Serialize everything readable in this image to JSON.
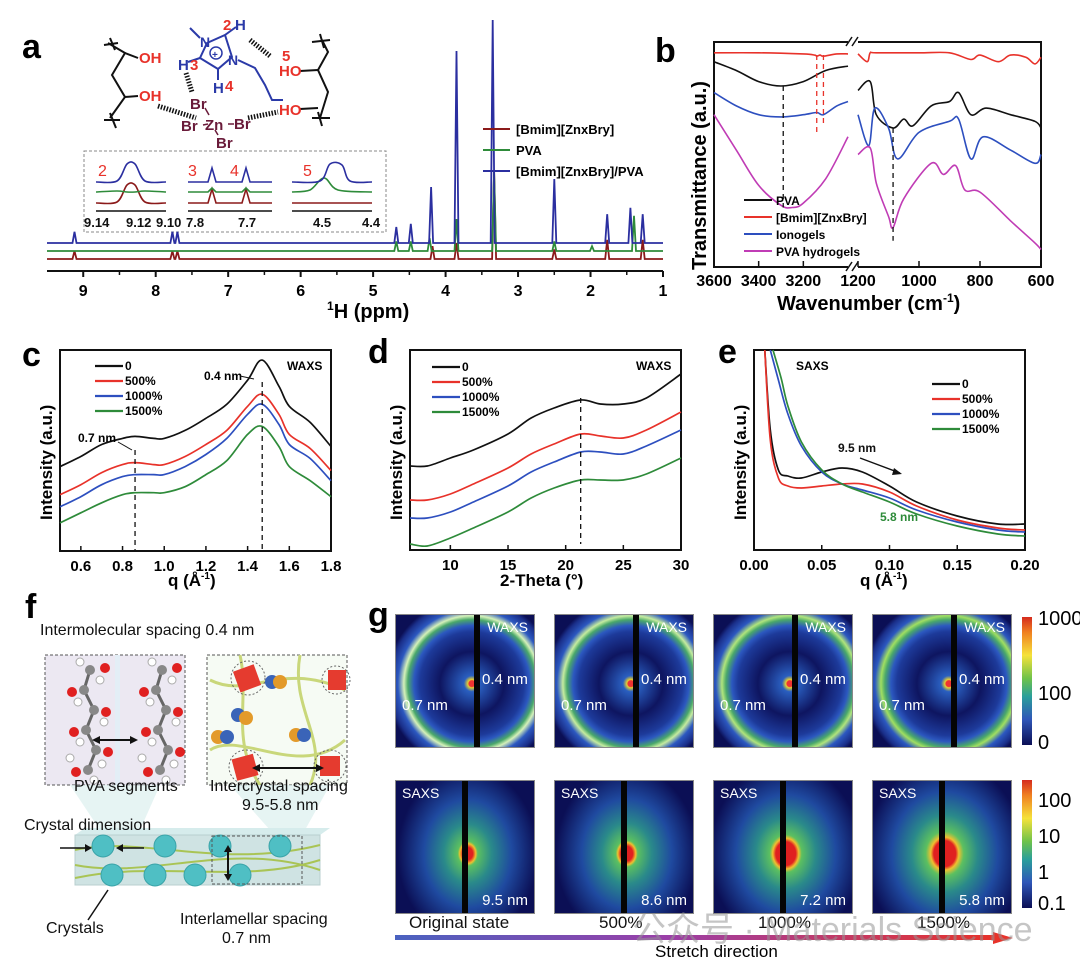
{
  "panels": {
    "a": "a",
    "b": "b",
    "c": "c",
    "d": "d",
    "e": "e",
    "f": "f",
    "g": "g"
  },
  "chart_data": [
    {
      "id": "a",
      "type": "line",
      "title": "",
      "xlabel": "1H (ppm)",
      "xlabel_sup": "1",
      "xlabel_main": "H (ppm)",
      "ylabel": "",
      "xlim": [
        9.5,
        1.0
      ],
      "x_ticks": [
        "9",
        "8",
        "7",
        "6",
        "5",
        "4",
        "3",
        "2",
        "1"
      ],
      "legend": [
        "[Bmim][ZnxBry]",
        "PVA",
        "[Bmim][ZnxBry]/PVA"
      ],
      "legend_placement": "right",
      "colors": {
        "[Bmim][ZnxBry]": "#8b1a1a",
        "PVA": "#2e8b3a",
        "[Bmim][ZnxBry]/PVA": "#2b2fa0"
      },
      "series": [
        {
          "name": "[Bmim][ZnxBry]",
          "peaks": [
            [
              9.12,
              0.05
            ],
            [
              7.77,
              0.05
            ],
            [
              7.7,
              0.05
            ],
            [
              4.18,
              0.08
            ],
            [
              3.85,
              0.1
            ],
            [
              3.33,
              0.55
            ],
            [
              2.5,
              0.06
            ],
            [
              1.77,
              0.12
            ],
            [
              1.28,
              0.12
            ]
          ]
        },
        {
          "name": "PVA",
          "peaks": [
            [
              4.68,
              0.06
            ],
            [
              4.48,
              0.06
            ],
            [
              4.22,
              0.08
            ],
            [
              3.85,
              0.2
            ],
            [
              3.33,
              0.5
            ],
            [
              2.5,
              0.06
            ],
            [
              1.98,
              0.03
            ],
            [
              1.4,
              0.22
            ]
          ]
        },
        {
          "name": "[Bmim][ZnxBry]/PVA",
          "peaks": [
            [
              9.12,
              0.07
            ],
            [
              7.77,
              0.07
            ],
            [
              7.7,
              0.07
            ],
            [
              4.68,
              0.1
            ],
            [
              4.48,
              0.12
            ],
            [
              4.2,
              0.35
            ],
            [
              3.85,
              1.2
            ],
            [
              3.35,
              1.45
            ],
            [
              2.5,
              0.4
            ],
            [
              1.77,
              0.18
            ],
            [
              1.45,
              0.22
            ],
            [
              1.28,
              0.18
            ]
          ]
        }
      ],
      "insets": [
        {
          "label": "2",
          "ticks": [
            "9.14",
            "9.12",
            "9.10"
          ]
        },
        {
          "label": "3",
          "label2": "4",
          "ticks": [
            "7.8",
            "7.7"
          ]
        },
        {
          "label": "5",
          "ticks": [
            "4.5",
            "4.4"
          ]
        }
      ],
      "structure_labels": {
        "oh_left_top": "OH",
        "oh_left_bottom": "OH",
        "ho_right_top": "HO",
        "ho_right_bottom": "HO",
        "n1": "N",
        "n2": "N",
        "h2": "H",
        "h3": "H",
        "h4": "H",
        "num2": "2",
        "num3": "3",
        "num4": "4",
        "num5": "5",
        "zn": "Zn",
        "br1": "Br",
        "br2": "Br",
        "br3": "Br",
        "br4": "Br",
        "plus": "+"
      }
    },
    {
      "id": "b",
      "type": "line",
      "title": "",
      "xlabel": "Wavenumber (cm-1)",
      "xlabel_main": "Wavenumber (cm",
      "xlabel_sup": "-1",
      "xlabel_end": ")",
      "ylabel": "Transmittance (a.u.)",
      "x_ticks": [
        "3600",
        "3400",
        "3200",
        "1200",
        "1000",
        "800",
        "600"
      ],
      "x_break": [
        3000,
        1200
      ],
      "legend": [
        "PVA",
        "[Bmim][ZnxBry]",
        "Ionogels",
        "PVA hydrogels"
      ],
      "legend_placement": "bottom-left",
      "colors": {
        "PVA": "#111111",
        "[Bmim][ZnxBry]": "#e8322a",
        "Ionogels": "#2d4fbf",
        "PVA hydrogels": "#c03cb5"
      },
      "annotations": {
        "dashed_black_1": 3290,
        "dashed_red_1": 3140,
        "dashed_red_2": 3110,
        "dashed_black_2": 1085
      },
      "series": [
        {
          "name": "[Bmim][ZnxBry]",
          "x": [
            3600,
            3400,
            3200,
            3150,
            3140,
            3125,
            3110,
            3050,
            3000,
            1200,
            1170,
            1160,
            1140,
            1000,
            900,
            830,
            800,
            740,
            700,
            650,
            620,
            600
          ],
          "y": [
            0.96,
            0.96,
            0.955,
            0.95,
            0.945,
            0.95,
            0.945,
            0.955,
            0.955,
            0.955,
            0.92,
            0.96,
            0.96,
            0.96,
            0.96,
            0.93,
            0.95,
            0.92,
            0.95,
            0.94,
            0.91,
            0.94
          ]
        },
        {
          "name": "PVA",
          "x": [
            3600,
            3500,
            3400,
            3300,
            3200,
            3100,
            3000,
            1200,
            1160,
            1140,
            1085,
            1050,
            1020,
            960,
            900,
            870,
            830,
            780,
            700,
            620,
            600
          ],
          "y": [
            0.92,
            0.88,
            0.83,
            0.81,
            0.83,
            0.88,
            0.9,
            0.79,
            0.83,
            0.68,
            0.62,
            0.66,
            0.63,
            0.72,
            0.74,
            0.78,
            0.68,
            0.71,
            0.68,
            0.65,
            0.62
          ]
        },
        {
          "name": "Ionogels",
          "x": [
            3600,
            3500,
            3400,
            3300,
            3200,
            3140,
            3110,
            3050,
            3000,
            1200,
            1165,
            1145,
            1100,
            1070,
            1000,
            900,
            870,
            830,
            790,
            700,
            620,
            600
          ],
          "y": [
            0.78,
            0.72,
            0.68,
            0.67,
            0.68,
            0.69,
            0.68,
            0.72,
            0.74,
            0.68,
            0.54,
            0.71,
            0.62,
            0.48,
            0.6,
            0.65,
            0.66,
            0.48,
            0.58,
            0.52,
            0.46,
            0.5
          ]
        },
        {
          "name": "PVA hydrogels",
          "x": [
            3600,
            3500,
            3400,
            3300,
            3250,
            3200,
            3100,
            3000,
            1200,
            1160,
            1140,
            1100,
            1085,
            1050,
            960,
            920,
            880,
            850,
            800,
            700,
            620,
            600
          ],
          "y": [
            0.68,
            0.52,
            0.36,
            0.27,
            0.26,
            0.28,
            0.39,
            0.58,
            0.5,
            0.53,
            0.37,
            0.22,
            0.17,
            0.3,
            0.46,
            0.41,
            0.45,
            0.34,
            0.33,
            0.2,
            0.1,
            0.07
          ]
        }
      ]
    },
    {
      "id": "c",
      "type": "line",
      "title": "",
      "xlabel": "q (Å-1)",
      "xlabel_main": "q (Å",
      "xlabel_sup": "-1",
      "xlabel_end": ")",
      "ylabel": "Intensity (a.u.)",
      "xlim": [
        0.5,
        1.8
      ],
      "x_ticks": [
        "0.6",
        "0.8",
        "1.0",
        "1.2",
        "1.4",
        "1.6",
        "1.8"
      ],
      "legend": [
        "0",
        "500%",
        "1000%",
        "1500%"
      ],
      "legend_placement": "top-left",
      "corner_label": "WAXS",
      "annotations": [
        {
          "text": "0.7 nm",
          "x": 0.86
        },
        {
          "text": "0.4 nm",
          "x": 1.47
        }
      ],
      "colors": {
        "0": "#111111",
        "500%": "#e8322a",
        "1000%": "#2d4fbf",
        "1500%": "#2e8b3a"
      },
      "series": [
        {
          "name": "0",
          "x": [
            0.5,
            0.6,
            0.7,
            0.8,
            0.86,
            0.95,
            1.0,
            1.1,
            1.2,
            1.3,
            1.4,
            1.47,
            1.55,
            1.6,
            1.7,
            1.8
          ],
          "y": [
            0.42,
            0.47,
            0.53,
            0.56,
            0.57,
            0.56,
            0.56,
            0.6,
            0.66,
            0.73,
            0.85,
            0.95,
            0.82,
            0.72,
            0.64,
            0.52
          ]
        },
        {
          "name": "500%",
          "x": [
            0.5,
            0.6,
            0.7,
            0.8,
            0.86,
            0.95,
            1.0,
            1.1,
            1.2,
            1.3,
            1.4,
            1.47,
            1.55,
            1.6,
            1.7,
            1.8
          ],
          "y": [
            0.28,
            0.33,
            0.39,
            0.43,
            0.44,
            0.43,
            0.43,
            0.47,
            0.53,
            0.6,
            0.72,
            0.78,
            0.68,
            0.58,
            0.51,
            0.4
          ]
        },
        {
          "name": "1000%",
          "x": [
            0.5,
            0.6,
            0.7,
            0.8,
            0.86,
            0.95,
            1.0,
            1.1,
            1.2,
            1.3,
            1.4,
            1.47,
            1.55,
            1.6,
            1.7,
            1.8
          ],
          "y": [
            0.22,
            0.27,
            0.33,
            0.37,
            0.38,
            0.38,
            0.38,
            0.42,
            0.48,
            0.56,
            0.68,
            0.73,
            0.63,
            0.53,
            0.46,
            0.35
          ]
        },
        {
          "name": "1500%",
          "x": [
            0.5,
            0.6,
            0.7,
            0.8,
            0.86,
            0.95,
            1.0,
            1.1,
            1.2,
            1.3,
            1.4,
            1.47,
            1.55,
            1.6,
            1.7,
            1.8
          ],
          "y": [
            0.14,
            0.19,
            0.24,
            0.28,
            0.29,
            0.29,
            0.29,
            0.32,
            0.38,
            0.45,
            0.58,
            0.62,
            0.52,
            0.42,
            0.35,
            0.27
          ]
        }
      ]
    },
    {
      "id": "d",
      "type": "line",
      "title": "",
      "xlabel": "2-Theta (°)",
      "ylabel": "Intensity (a.u.)",
      "xlim": [
        6.5,
        30
      ],
      "x_ticks": [
        "10",
        "15",
        "20",
        "25",
        "30"
      ],
      "legend": [
        "0",
        "500%",
        "1000%",
        "1500%"
      ],
      "legend_placement": "top-left",
      "corner_label": "WAXS",
      "annotations": [
        {
          "x": 21.3
        }
      ],
      "colors": {
        "0": "#111111",
        "500%": "#e8322a",
        "1000%": "#2d4fbf",
        "1500%": "#2e8b3a"
      },
      "series": [
        {
          "name": "0",
          "x": [
            6.5,
            8,
            10,
            12,
            15,
            17,
            19,
            21.3,
            23,
            25,
            27,
            30
          ],
          "y": [
            0.42,
            0.42,
            0.46,
            0.5,
            0.58,
            0.66,
            0.71,
            0.75,
            0.73,
            0.73,
            0.76,
            0.88
          ]
        },
        {
          "name": "500%",
          "x": [
            6.5,
            8,
            10,
            12,
            15,
            17,
            19,
            21.3,
            23,
            25,
            27,
            30
          ],
          "y": [
            0.25,
            0.25,
            0.28,
            0.33,
            0.41,
            0.48,
            0.53,
            0.58,
            0.57,
            0.56,
            0.6,
            0.69
          ]
        },
        {
          "name": "1000%",
          "x": [
            6.5,
            8,
            10,
            12,
            15,
            17,
            19,
            21.3,
            23,
            25,
            27,
            30
          ],
          "y": [
            0.16,
            0.16,
            0.19,
            0.24,
            0.32,
            0.39,
            0.44,
            0.49,
            0.49,
            0.48,
            0.52,
            0.6
          ]
        },
        {
          "name": "1500%",
          "x": [
            6.5,
            8,
            10,
            12,
            15,
            17,
            19,
            21.3,
            23,
            25,
            27,
            30
          ],
          "y": [
            0.03,
            0.02,
            0.06,
            0.11,
            0.19,
            0.26,
            0.31,
            0.35,
            0.35,
            0.35,
            0.38,
            0.46
          ]
        }
      ]
    },
    {
      "id": "e",
      "type": "line",
      "title": "",
      "xlabel": "q (Å-1)",
      "xlabel_main": "q (Å",
      "xlabel_sup": "-1",
      "xlabel_end": ")",
      "ylabel": "Intensity (a.u.)",
      "xlim": [
        0,
        0.2
      ],
      "x_ticks": [
        "0.00",
        "0.05",
        "0.10",
        "0.15",
        "0.20"
      ],
      "legend": [
        "0",
        "500%",
        "1000%",
        "1500%"
      ],
      "legend_placement": "top-right",
      "corner_label": "SAXS",
      "annotations": [
        {
          "text": "9.5 nm",
          "color": "#111111"
        },
        {
          "text": "5.8 nm",
          "color": "#2e8b3a"
        }
      ],
      "colors": {
        "0": "#111111",
        "500%": "#e8322a",
        "1000%": "#2d4fbf",
        "1500%": "#2e8b3a"
      },
      "series": [
        {
          "name": "0",
          "x": [
            0.008,
            0.012,
            0.018,
            0.025,
            0.035,
            0.05,
            0.065,
            0.08,
            0.1,
            0.12,
            0.15,
            0.18,
            0.2
          ],
          "y": [
            1.0,
            0.6,
            0.4,
            0.37,
            0.36,
            0.39,
            0.41,
            0.39,
            0.32,
            0.24,
            0.17,
            0.13,
            0.13
          ]
        },
        {
          "name": "500%",
          "x": [
            0.008,
            0.012,
            0.018,
            0.025,
            0.035,
            0.05,
            0.065,
            0.08,
            0.1,
            0.12,
            0.15,
            0.18,
            0.2
          ],
          "y": [
            1.0,
            0.55,
            0.36,
            0.32,
            0.31,
            0.32,
            0.33,
            0.33,
            0.29,
            0.22,
            0.15,
            0.11,
            0.1
          ]
        },
        {
          "name": "1000%",
          "x": [
            0.012,
            0.018,
            0.025,
            0.035,
            0.05,
            0.065,
            0.08,
            0.1,
            0.12,
            0.15,
            0.18,
            0.2
          ],
          "y": [
            1.0,
            0.85,
            0.68,
            0.52,
            0.39,
            0.33,
            0.3,
            0.26,
            0.2,
            0.14,
            0.1,
            0.09
          ]
        },
        {
          "name": "1500%",
          "x": [
            0.014,
            0.02,
            0.025,
            0.035,
            0.05,
            0.065,
            0.08,
            0.1,
            0.12,
            0.15,
            0.18,
            0.2
          ],
          "y": [
            1.0,
            0.86,
            0.72,
            0.54,
            0.4,
            0.33,
            0.29,
            0.24,
            0.18,
            0.12,
            0.08,
            0.07
          ]
        }
      ]
    }
  ],
  "panel_f": {
    "intermolecular_label": "Intermolecular spacing 0.4 nm",
    "pva_segments": "PVA segments",
    "intercrystal_line1": "Intercrystal spacing",
    "intercrystal_line2": "9.5-5.8 nm",
    "crystal_dimension": "Crystal dimension",
    "crystals": "Crystals",
    "interlamellar_line1": "Interlamellar spacing",
    "interlamellar_line2": "0.7 nm"
  },
  "panel_g": {
    "waxs_label": "WAXS",
    "saxs_label": "SAXS",
    "waxs_ring_outer": "0.4 nm",
    "waxs_ring_inner": "0.7 nm",
    "states": [
      {
        "label": "Original state",
        "saxs_spacing": "9.5 nm",
        "waxs_arc_intensity": 0.4,
        "saxs_center_size": 0.2
      },
      {
        "label": "500%",
        "saxs_spacing": "8.6 nm",
        "waxs_arc_intensity": 0.55,
        "saxs_center_size": 0.25
      },
      {
        "label": "1000%",
        "saxs_spacing": "7.2 nm",
        "waxs_arc_intensity": 0.75,
        "saxs_center_size": 0.55
      },
      {
        "label": "1500%",
        "saxs_spacing": "5.8 nm",
        "waxs_arc_intensity": 0.9,
        "saxs_center_size": 0.7
      }
    ],
    "waxs_colorbar_ticks": [
      "1000",
      "100",
      "0"
    ],
    "saxs_colorbar_ticks": [
      "100",
      "10",
      "1",
      "0.1"
    ],
    "stretch_direction": "Stretch direction"
  },
  "watermark": "公众号 · Materials Science"
}
